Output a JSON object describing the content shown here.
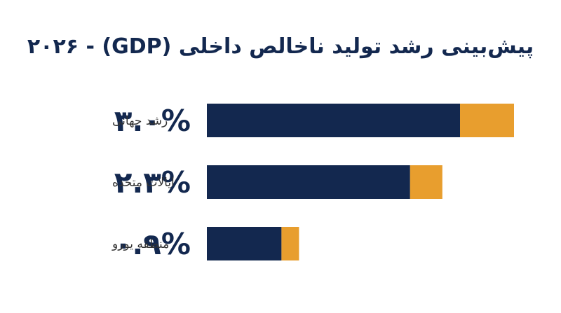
{
  "chart_data": {
    "type": "bar",
    "orientation": "horizontal",
    "title": "پیش‌بینی رشد تولید ناخالص داخلی (GDP) - ۲۰۲۶",
    "categories": [
      "رشد جهانی",
      "ایالات متحده",
      "منطقه یورو"
    ],
    "values": [
      3.0,
      2.3,
      0.9
    ],
    "value_labels": [
      "۳.۰%",
      "۲.۳%",
      "۰.۹%"
    ],
    "xlim": [
      0,
      3.0
    ],
    "grid": false,
    "legend": "none"
  },
  "colors": {
    "bar_main": "#13284f",
    "bar_accent": "#e89e2e",
    "title": "#13284f",
    "value_text": "#13284f",
    "category_text": "#333333",
    "background": "#ffffff"
  }
}
